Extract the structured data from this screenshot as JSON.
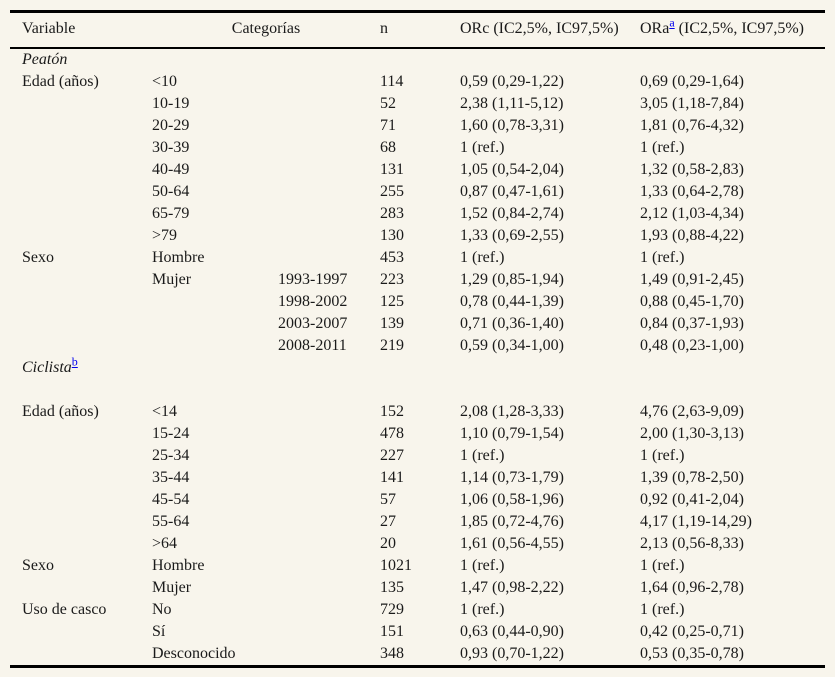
{
  "colors": {
    "background": "#f8f5ec",
    "border": "#000000",
    "text": "#1a1a1a",
    "footnote_link": "#0000ee"
  },
  "table": {
    "headers": {
      "variable": "Variable",
      "categorias": "Categorías",
      "n": "n",
      "orc": "ORc (IC2,5%, IC97,5%)",
      "ora_prefix": "ORa",
      "ora_footnote": "a",
      "ora_suffix": " (IC2,5%, IC97,5%)"
    },
    "sections": [
      {
        "title": "Peatón",
        "sup": "",
        "blank_row_after_title": false,
        "rows": [
          {
            "variable": "Edad (años)",
            "categoria": "<10",
            "sub": "",
            "n": "114",
            "orc": "0,59 (0,29-1,22)",
            "ora": "0,69 (0,29-1,64)"
          },
          {
            "variable": "",
            "categoria": "10-19",
            "sub": "",
            "n": "52",
            "orc": "2,38 (1,11-5,12)",
            "ora": "3,05 (1,18-7,84)"
          },
          {
            "variable": "",
            "categoria": "20-29",
            "sub": "",
            "n": "71",
            "orc": "1,60 (0,78-3,31)",
            "ora": "1,81 (0,76-4,32)"
          },
          {
            "variable": "",
            "categoria": "30-39",
            "sub": "",
            "n": "68",
            "orc": "1 (ref.)",
            "ora": "1 (ref.)"
          },
          {
            "variable": "",
            "categoria": "40-49",
            "sub": "",
            "n": "131",
            "orc": "1,05 (0,54-2,04)",
            "ora": "1,32 (0,58-2,83)"
          },
          {
            "variable": "",
            "categoria": "50-64",
            "sub": "",
            "n": "255",
            "orc": "0,87 (0,47-1,61)",
            "ora": "1,33 (0,64-2,78)"
          },
          {
            "variable": "",
            "categoria": "65-79",
            "sub": "",
            "n": "283",
            "orc": "1,52 (0,84-2,74)",
            "ora": "2,12 (1,03-4,34)"
          },
          {
            "variable": "",
            "categoria": ">79",
            "sub": "",
            "n": "130",
            "orc": "1,33 (0,69-2,55)",
            "ora": "1,93 (0,88-4,22)"
          },
          {
            "variable": "Sexo",
            "categoria": "Hombre",
            "sub": "",
            "n": "453",
            "orc": "1 (ref.)",
            "ora": "1 (ref.)"
          },
          {
            "variable": "",
            "categoria": "Mujer",
            "sub": "1993-1997",
            "n": "223",
            "orc": "1,29 (0,85-1,94)",
            "ora": "1,49 (0,91-2,45)"
          },
          {
            "variable": "",
            "categoria": "",
            "sub": "1998-2002",
            "n": "125",
            "orc": "0,78 (0,44-1,39)",
            "ora": "0,88 (0,45-1,70)"
          },
          {
            "variable": "",
            "categoria": "",
            "sub": "2003-2007",
            "n": "139",
            "orc": "0,71 (0,36-1,40)",
            "ora": "0,84 (0,37-1,93)"
          },
          {
            "variable": "",
            "categoria": "",
            "sub": "2008-2011",
            "n": "219",
            "orc": "0,59 (0,34-1,00)",
            "ora": "0,48 (0,23-1,00)"
          }
        ]
      },
      {
        "title": "Ciclista",
        "sup": "b",
        "blank_row_after_title": true,
        "rows": [
          {
            "variable": "Edad (años)",
            "categoria": "<14",
            "sub": "",
            "n": "152",
            "orc": "2,08 (1,28-3,33)",
            "ora": "4,76 (2,63-9,09)"
          },
          {
            "variable": "",
            "categoria": "15-24",
            "sub": "",
            "n": "478",
            "orc": "1,10 (0,79-1,54)",
            "ora": "2,00 (1,30-3,13)"
          },
          {
            "variable": "",
            "categoria": "25-34",
            "sub": "",
            "n": "227",
            "orc": "1 (ref.)",
            "ora": "1 (ref.)"
          },
          {
            "variable": "",
            "categoria": "35-44",
            "sub": "",
            "n": "141",
            "orc": "1,14 (0,73-1,79)",
            "ora": "1,39 (0,78-2,50)"
          },
          {
            "variable": "",
            "categoria": "45-54",
            "sub": "",
            "n": "57",
            "orc": "1,06 (0,58-1,96)",
            "ora": "0,92 (0,41-2,04)"
          },
          {
            "variable": "",
            "categoria": "55-64",
            "sub": "",
            "n": "27",
            "orc": "1,85 (0,72-4,76)",
            "ora": "4,17 (1,19-14,29)"
          },
          {
            "variable": "",
            "categoria": ">64",
            "sub": "",
            "n": "20",
            "orc": "1,61 (0,56-4,55)",
            "ora": "2,13 (0,56-8,33)"
          },
          {
            "variable": "Sexo",
            "categoria": "Hombre",
            "sub": "",
            "n": "1021",
            "orc": "1 (ref.)",
            "ora": "1 (ref.)"
          },
          {
            "variable": "",
            "categoria": "Mujer",
            "sub": "",
            "n": "135",
            "orc": "1,47 (0,98-2,22)",
            "ora": "1,64 (0,96-2,78)"
          },
          {
            "variable": "Uso de casco",
            "categoria": "No",
            "sub": "",
            "n": "729",
            "orc": "1 (ref.)",
            "ora": "1 (ref.)"
          },
          {
            "variable": "",
            "categoria": "Sí",
            "sub": "",
            "n": "151",
            "orc": "0,63 (0,44-0,90)",
            "ora": "0,42 (0,25-0,71)"
          },
          {
            "variable": "",
            "categoria": "Desconocido",
            "sub": "",
            "n": "348",
            "orc": "0,93 (0,70-1,22)",
            "ora": "0,53 (0,35-0,78)"
          }
        ]
      }
    ]
  }
}
